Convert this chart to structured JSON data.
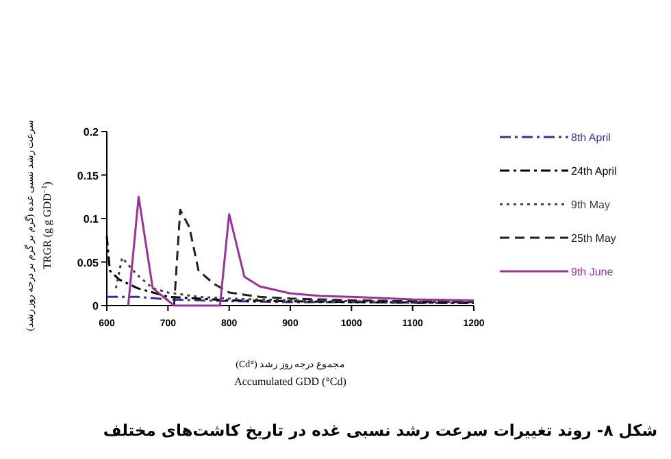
{
  "chart_data": {
    "type": "line",
    "title": "شکل ۸- روند تغییرات سرعت رشد نسبی غده در تاریخ کاشت‌های مختلف",
    "xlabel": "مجموع درجه روز رشد (°Cd)\nAccumulated GDD (°Cd)",
    "ylabel": "سرعت رشد نسبی غده (گرم بر گرم بر درجه روز رشد)\nTRGR (g g GDD$^{−1}$)",
    "xlim": [
      600,
      1200
    ],
    "xticks": [
      600,
      700,
      800,
      900,
      1000,
      1100,
      1200
    ],
    "ylim": [
      0,
      0.2
    ],
    "yticks": [
      0,
      0.05,
      0.1,
      0.15,
      0.2
    ],
    "legend": "right",
    "marker": "none",
    "series": [
      {
        "name": "8th April",
        "color": "#333399",
        "line_style": "dashed",
        "x": [
          600,
          650,
          700,
          800,
          900,
          1000,
          1100,
          1200
        ],
        "values": [
          0.01,
          0.01,
          0.007,
          0.005,
          0.004,
          0.004,
          0.003,
          0.003
        ]
      },
      {
        "name": "24th April",
        "color": "#000000",
        "line_style": "dashed",
        "x": [
          600,
          605,
          620,
          650,
          700,
          800,
          900,
          1000,
          1200
        ],
        "values": [
          0.08,
          0.04,
          0.03,
          0.02,
          0.01,
          0.006,
          0.005,
          0.004,
          0.003
        ]
      },
      {
        "name": "9th May",
        "color": "#404040",
        "line_style": "dotted",
        "x": [
          615,
          625,
          650,
          675,
          700,
          750,
          800,
          900,
          1000,
          1200
        ],
        "values": [
          0.02,
          0.055,
          0.035,
          0.02,
          0.015,
          0.01,
          0.008,
          0.006,
          0.005,
          0.004
        ]
      },
      {
        "name": "25th May",
        "color": "#202020",
        "line_style": "dashed",
        "x": [
          710,
          720,
          735,
          750,
          775,
          800,
          850,
          900,
          1000,
          1200
        ],
        "values": [
          0,
          0.11,
          0.09,
          0.04,
          0.025,
          0.015,
          0.01,
          0.008,
          0.006,
          0.004
        ]
      },
      {
        "name": "9th June",
        "color": "#993399",
        "line_style": "solid",
        "x": [
          635,
          652,
          675,
          710,
          750,
          785,
          800,
          825,
          850,
          900,
          950,
          1000,
          1100,
          1200
        ],
        "values": [
          0,
          0.125,
          0.02,
          0,
          0,
          0,
          0.105,
          0.033,
          0.022,
          0.014,
          0.011,
          0.01,
          0.007,
          0.006
        ]
      }
    ]
  }
}
